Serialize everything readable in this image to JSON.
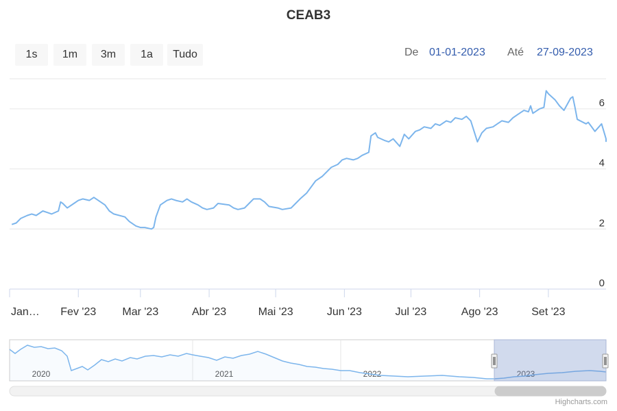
{
  "chart_data": {
    "type": "line",
    "title": "CEAB3",
    "x_axis_type": "date",
    "ylim": [
      0,
      7
    ],
    "y_ticks": [
      "0",
      "2",
      "4",
      "6"
    ],
    "x_ticks": [
      "Jan…",
      "Fev '23",
      "Mar '23",
      "Abr '23",
      "Mai '23",
      "Jun '23",
      "Jul '23",
      "Ago '23",
      "Set '23"
    ],
    "grid": true,
    "series": [
      {
        "color": "#7cb5ec",
        "points": [
          [
            "2023-01-02",
            2.15
          ],
          [
            "2023-01-04",
            2.2
          ],
          [
            "2023-01-06",
            2.35
          ],
          [
            "2023-01-09",
            2.45
          ],
          [
            "2023-01-11",
            2.5
          ],
          [
            "2023-01-13",
            2.45
          ],
          [
            "2023-01-16",
            2.6
          ],
          [
            "2023-01-18",
            2.55
          ],
          [
            "2023-01-20",
            2.5
          ],
          [
            "2023-01-23",
            2.6
          ],
          [
            "2023-01-24",
            2.9
          ],
          [
            "2023-01-25",
            2.85
          ],
          [
            "2023-01-27",
            2.7
          ],
          [
            "2023-01-30",
            2.85
          ],
          [
            "2023-02-01",
            2.95
          ],
          [
            "2023-02-03",
            3.0
          ],
          [
            "2023-02-06",
            2.95
          ],
          [
            "2023-02-08",
            3.05
          ],
          [
            "2023-02-10",
            2.95
          ],
          [
            "2023-02-13",
            2.8
          ],
          [
            "2023-02-15",
            2.6
          ],
          [
            "2023-02-17",
            2.5
          ],
          [
            "2023-02-22",
            2.4
          ],
          [
            "2023-02-24",
            2.25
          ],
          [
            "2023-02-27",
            2.1
          ],
          [
            "2023-03-01",
            2.05
          ],
          [
            "2023-03-03",
            2.05
          ],
          [
            "2023-03-06",
            2.0
          ],
          [
            "2023-03-07",
            2.05
          ],
          [
            "2023-03-08",
            2.4
          ],
          [
            "2023-03-10",
            2.8
          ],
          [
            "2023-03-13",
            2.95
          ],
          [
            "2023-03-15",
            3.0
          ],
          [
            "2023-03-17",
            2.95
          ],
          [
            "2023-03-20",
            2.9
          ],
          [
            "2023-03-22",
            3.0
          ],
          [
            "2023-03-24",
            2.9
          ],
          [
            "2023-03-27",
            2.8
          ],
          [
            "2023-03-29",
            2.7
          ],
          [
            "2023-03-31",
            2.65
          ],
          [
            "2023-04-03",
            2.7
          ],
          [
            "2023-04-05",
            2.85
          ],
          [
            "2023-04-10",
            2.8
          ],
          [
            "2023-04-12",
            2.7
          ],
          [
            "2023-04-14",
            2.65
          ],
          [
            "2023-04-17",
            2.7
          ],
          [
            "2023-04-19",
            2.85
          ],
          [
            "2023-04-21",
            3.0
          ],
          [
            "2023-04-24",
            3.0
          ],
          [
            "2023-04-26",
            2.9
          ],
          [
            "2023-04-28",
            2.75
          ],
          [
            "2023-05-02",
            2.7
          ],
          [
            "2023-05-04",
            2.65
          ],
          [
            "2023-05-08",
            2.7
          ],
          [
            "2023-05-10",
            2.85
          ],
          [
            "2023-05-12",
            3.0
          ],
          [
            "2023-05-15",
            3.2
          ],
          [
            "2023-05-17",
            3.4
          ],
          [
            "2023-05-19",
            3.6
          ],
          [
            "2023-05-22",
            3.75
          ],
          [
            "2023-05-24",
            3.9
          ],
          [
            "2023-05-26",
            4.05
          ],
          [
            "2023-05-29",
            4.15
          ],
          [
            "2023-05-31",
            4.3
          ],
          [
            "2023-06-02",
            4.35
          ],
          [
            "2023-06-05",
            4.3
          ],
          [
            "2023-06-07",
            4.35
          ],
          [
            "2023-06-09",
            4.45
          ],
          [
            "2023-06-12",
            4.55
          ],
          [
            "2023-06-13",
            5.1
          ],
          [
            "2023-06-15",
            5.2
          ],
          [
            "2023-06-16",
            5.05
          ],
          [
            "2023-06-19",
            4.95
          ],
          [
            "2023-06-21",
            4.9
          ],
          [
            "2023-06-23",
            5.0
          ],
          [
            "2023-06-26",
            4.75
          ],
          [
            "2023-06-28",
            5.15
          ],
          [
            "2023-06-30",
            5.0
          ],
          [
            "2023-07-03",
            5.25
          ],
          [
            "2023-07-05",
            5.3
          ],
          [
            "2023-07-07",
            5.4
          ],
          [
            "2023-07-10",
            5.35
          ],
          [
            "2023-07-12",
            5.5
          ],
          [
            "2023-07-14",
            5.45
          ],
          [
            "2023-07-17",
            5.6
          ],
          [
            "2023-07-19",
            5.55
          ],
          [
            "2023-07-21",
            5.7
          ],
          [
            "2023-07-24",
            5.65
          ],
          [
            "2023-07-26",
            5.75
          ],
          [
            "2023-07-28",
            5.6
          ],
          [
            "2023-07-31",
            4.9
          ],
          [
            "2023-08-02",
            5.2
          ],
          [
            "2023-08-04",
            5.35
          ],
          [
            "2023-08-07",
            5.4
          ],
          [
            "2023-08-09",
            5.5
          ],
          [
            "2023-08-11",
            5.6
          ],
          [
            "2023-08-14",
            5.55
          ],
          [
            "2023-08-16",
            5.7
          ],
          [
            "2023-08-18",
            5.8
          ],
          [
            "2023-08-21",
            5.95
          ],
          [
            "2023-08-23",
            5.9
          ],
          [
            "2023-08-24",
            6.1
          ],
          [
            "2023-08-25",
            5.85
          ],
          [
            "2023-08-28",
            6.0
          ],
          [
            "2023-08-30",
            6.05
          ],
          [
            "2023-08-31",
            6.6
          ],
          [
            "2023-09-01",
            6.5
          ],
          [
            "2023-09-04",
            6.3
          ],
          [
            "2023-09-06",
            6.1
          ],
          [
            "2023-09-08",
            5.95
          ],
          [
            "2023-09-11",
            6.35
          ],
          [
            "2023-09-12",
            6.4
          ],
          [
            "2023-09-13",
            6.05
          ],
          [
            "2023-09-14",
            5.65
          ],
          [
            "2023-09-18",
            5.5
          ],
          [
            "2023-09-19",
            5.55
          ],
          [
            "2023-09-20",
            5.45
          ],
          [
            "2023-09-21",
            5.35
          ],
          [
            "2023-09-22",
            5.25
          ],
          [
            "2023-09-25",
            5.5
          ],
          [
            "2023-09-26",
            5.25
          ],
          [
            "2023-09-27",
            5.0
          ],
          [
            "2023-09-27",
            4.9
          ]
        ]
      }
    ]
  },
  "range_selector": {
    "buttons": [
      "1s",
      "1m",
      "3m",
      "1a",
      "Tudo"
    ],
    "from_label": "De",
    "from_value": "01-01-2023",
    "to_label": "Até",
    "to_value": "27-09-2023"
  },
  "navigator": {
    "year_labels": [
      "2020",
      "2021",
      "2022",
      "2023"
    ],
    "series_color": "#7cb5ec",
    "selection_color": "#ccd6eb"
  },
  "credits": "Highcharts.com"
}
